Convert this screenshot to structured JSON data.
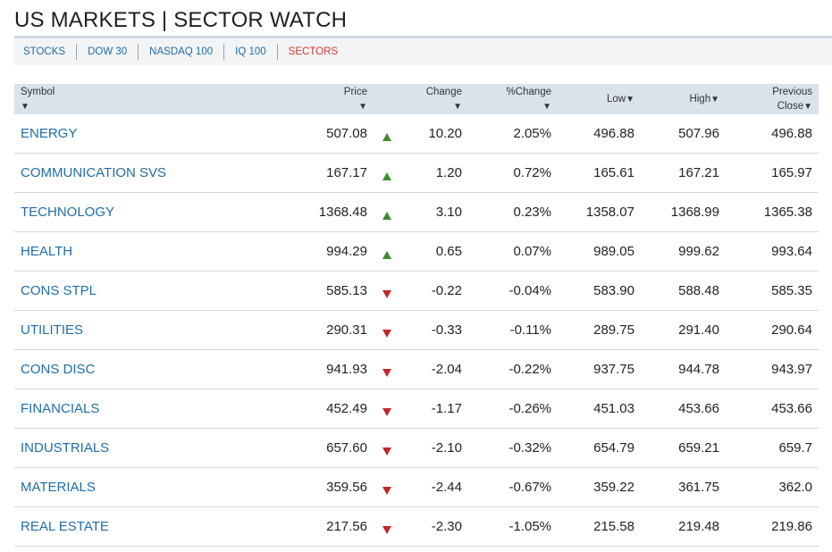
{
  "page": {
    "title": "US MARKETS | SECTOR WATCH"
  },
  "subnav": [
    {
      "label": "STOCKS",
      "active": false
    },
    {
      "label": "DOW 30",
      "active": false
    },
    {
      "label": "NASDAQ 100",
      "active": false
    },
    {
      "label": "IQ 100",
      "active": false
    },
    {
      "label": "SECTORS",
      "active": true
    }
  ],
  "table": {
    "headers": {
      "symbol": "Symbol",
      "price": "Price",
      "change": "Change",
      "pct_change": "%Change",
      "low": "Low",
      "high": "High",
      "prev_line1": "Previous",
      "prev_line2": "Close",
      "sort_glyph": "▼"
    },
    "colors": {
      "up": "#3c8c2f",
      "down": "#c0282d",
      "link": "#1f6ea8"
    },
    "rows": [
      {
        "symbol": "ENERGY",
        "price": "507.08",
        "direction": "up",
        "change": "10.20",
        "pct_change": "2.05%",
        "low": "496.88",
        "high": "507.96",
        "prev_close": "496.88"
      },
      {
        "symbol": "COMMUNICATION SVS",
        "price": "167.17",
        "direction": "up",
        "change": "1.20",
        "pct_change": "0.72%",
        "low": "165.61",
        "high": "167.21",
        "prev_close": "165.97"
      },
      {
        "symbol": "TECHNOLOGY",
        "price": "1368.48",
        "direction": "up",
        "change": "3.10",
        "pct_change": "0.23%",
        "low": "1358.07",
        "high": "1368.99",
        "prev_close": "1365.38"
      },
      {
        "symbol": "HEALTH",
        "price": "994.29",
        "direction": "up",
        "change": "0.65",
        "pct_change": "0.07%",
        "low": "989.05",
        "high": "999.62",
        "prev_close": "993.64"
      },
      {
        "symbol": "CONS STPL",
        "price": "585.13",
        "direction": "down",
        "change": "-0.22",
        "pct_change": "-0.04%",
        "low": "583.90",
        "high": "588.48",
        "prev_close": "585.35"
      },
      {
        "symbol": "UTILITIES",
        "price": "290.31",
        "direction": "down",
        "change": "-0.33",
        "pct_change": "-0.11%",
        "low": "289.75",
        "high": "291.40",
        "prev_close": "290.64"
      },
      {
        "symbol": "CONS DISC",
        "price": "941.93",
        "direction": "down",
        "change": "-2.04",
        "pct_change": "-0.22%",
        "low": "937.75",
        "high": "944.78",
        "prev_close": "943.97"
      },
      {
        "symbol": "FINANCIALS",
        "price": "452.49",
        "direction": "down",
        "change": "-1.17",
        "pct_change": "-0.26%",
        "low": "451.03",
        "high": "453.66",
        "prev_close": "453.66"
      },
      {
        "symbol": "INDUSTRIALS",
        "price": "657.60",
        "direction": "down",
        "change": "-2.10",
        "pct_change": "-0.32%",
        "low": "654.79",
        "high": "659.21",
        "prev_close": "659.7"
      },
      {
        "symbol": "MATERIALS",
        "price": "359.56",
        "direction": "down",
        "change": "-2.44",
        "pct_change": "-0.67%",
        "low": "359.22",
        "high": "361.75",
        "prev_close": "362.0"
      },
      {
        "symbol": "REAL ESTATE",
        "price": "217.56",
        "direction": "down",
        "change": "-2.30",
        "pct_change": "-1.05%",
        "low": "215.58",
        "high": "219.48",
        "prev_close": "219.86"
      }
    ]
  }
}
